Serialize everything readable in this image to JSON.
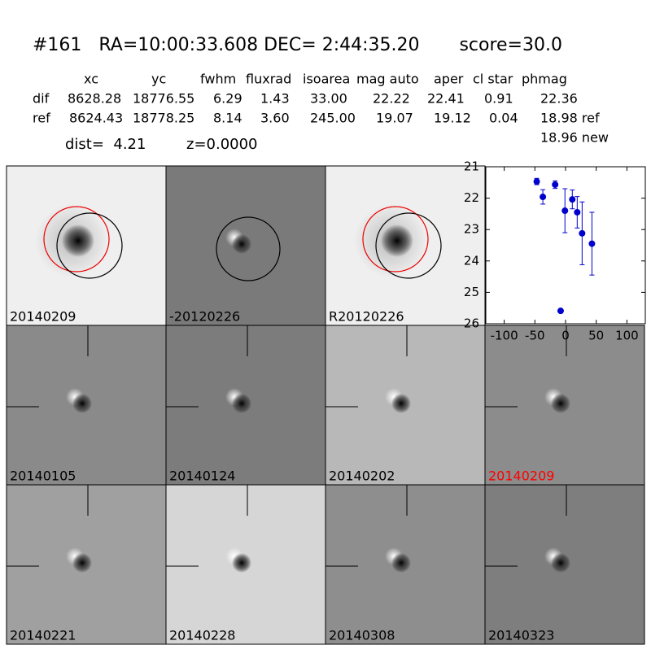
{
  "header": {
    "title": "#161   RA=10:00:33.608 DEC= 2:44:35.20       score=30.0"
  },
  "table": {
    "columns": [
      "xc",
      "yc",
      "fwhm",
      "fluxrad",
      "isoarea",
      "mag auto",
      "aper",
      "cl star",
      "phmag"
    ],
    "rows": [
      [
        "dif",
        "8628.28",
        "18776.55",
        "6.29",
        "1.43",
        "33.00",
        "22.22",
        "22.41",
        "0.91",
        "22.36"
      ],
      [
        "ref",
        "8624.43",
        "18778.25",
        "8.14",
        "3.60",
        "245.00",
        "19.07",
        "19.12",
        "0.04",
        "18.98 ref"
      ]
    ],
    "extra": "18.96 new"
  },
  "dist": "dist=  4.21",
  "z": "z=0.0000",
  "stamps": [
    "20140209",
    "-20120226",
    "R20120226",
    "20140105",
    "20140124",
    "20140202",
    "20140209",
    "20140221",
    "20140228",
    "20140308",
    "20140323"
  ],
  "chart_data": {
    "type": "scatter",
    "x": [
      -47,
      -37,
      -17,
      -8,
      -1,
      11,
      19,
      27,
      43
    ],
    "series": [
      {
        "color": "#0000cc",
        "values": [
          21.47,
          21.96,
          21.57,
          25.59,
          22.4,
          22.04,
          22.45,
          23.12,
          23.45
        ],
        "errors": [
          0.1,
          0.23,
          0.12,
          0.05,
          0.7,
          0.3,
          0.5,
          1.0,
          1.0
        ]
      }
    ],
    "xlim": [
      -130,
      130
    ],
    "ylim": [
      26,
      21
    ],
    "xticks": [
      -100,
      -50,
      0,
      50,
      100
    ],
    "yticks": [
      21,
      22,
      23,
      24,
      25,
      26
    ]
  }
}
